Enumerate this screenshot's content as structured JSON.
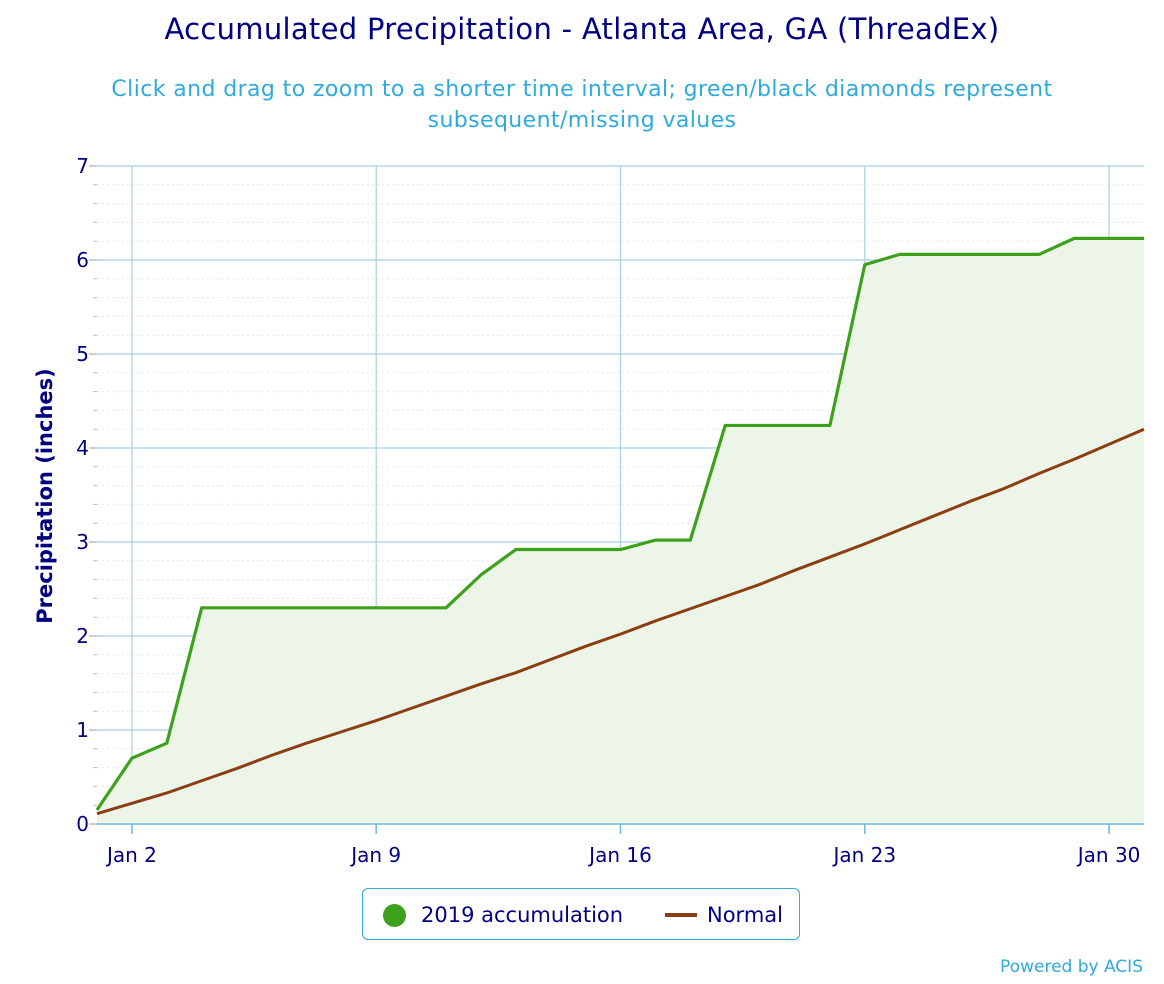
{
  "chart_data": {
    "type": "area",
    "title": "Accumulated Precipitation - Atlanta Area, GA (ThreadEx)",
    "subtitle": "Click and drag to zoom to a shorter time interval; green/black diamonds represent subsequent/missing values",
    "ylabel": "Precipitation (inches)",
    "xlabel": "",
    "x_ticks": [
      "Jan 2",
      "Jan 9",
      "Jan 16",
      "Jan 23",
      "Jan 30"
    ],
    "x_tick_days": [
      2,
      9,
      16,
      23,
      30
    ],
    "xlim": [
      1,
      31
    ],
    "y_ticks": [
      "0",
      "1",
      "2",
      "3",
      "4",
      "5",
      "6",
      "7"
    ],
    "ylim": [
      0,
      7
    ],
    "grid": true,
    "legend_position": "bottom-center",
    "series": [
      {
        "name": "2019 accumulation",
        "color": "#3da11c",
        "fill": "#edf5e8",
        "x": [
          1,
          2,
          3,
          4,
          5,
          6,
          7,
          8,
          9,
          10,
          11,
          12,
          13,
          14,
          15,
          16,
          17,
          18,
          19,
          20,
          21,
          22,
          23,
          24,
          25,
          26,
          27,
          28,
          29,
          30,
          31
        ],
        "y": [
          0.15,
          0.7,
          0.86,
          2.3,
          2.3,
          2.3,
          2.3,
          2.3,
          2.3,
          2.3,
          2.3,
          2.65,
          2.92,
          2.92,
          2.92,
          2.92,
          3.02,
          3.02,
          4.24,
          4.24,
          4.24,
          4.24,
          5.95,
          6.06,
          6.06,
          6.06,
          6.06,
          6.06,
          6.23,
          6.23,
          6.23
        ]
      },
      {
        "name": "Normal",
        "color": "#8b3e13",
        "x": [
          1,
          2,
          3,
          4,
          5,
          6,
          7,
          8,
          9,
          10,
          11,
          12,
          13,
          14,
          15,
          16,
          17,
          18,
          19,
          20,
          21,
          22,
          23,
          24,
          25,
          26,
          27,
          28,
          29,
          30,
          31
        ],
        "y": [
          0.11,
          0.22,
          0.33,
          0.46,
          0.59,
          0.73,
          0.86,
          0.98,
          1.1,
          1.23,
          1.36,
          1.49,
          1.61,
          1.75,
          1.89,
          2.02,
          2.16,
          2.29,
          2.42,
          2.55,
          2.7,
          2.84,
          2.98,
          3.13,
          3.28,
          3.43,
          3.57,
          3.73,
          3.88,
          4.04,
          4.2
        ]
      }
    ]
  },
  "legend": {
    "items": [
      {
        "label": "2019 accumulation"
      },
      {
        "label": "Normal"
      }
    ]
  },
  "credits": "Powered by ACIS",
  "colors": {
    "title": "#000080",
    "subtitle": "#2eaadc",
    "axis_text": "#000080",
    "grid_major": "#a7cfe0",
    "grid_minor": "#dde9ee",
    "axis_line": "#6bb9e0"
  }
}
